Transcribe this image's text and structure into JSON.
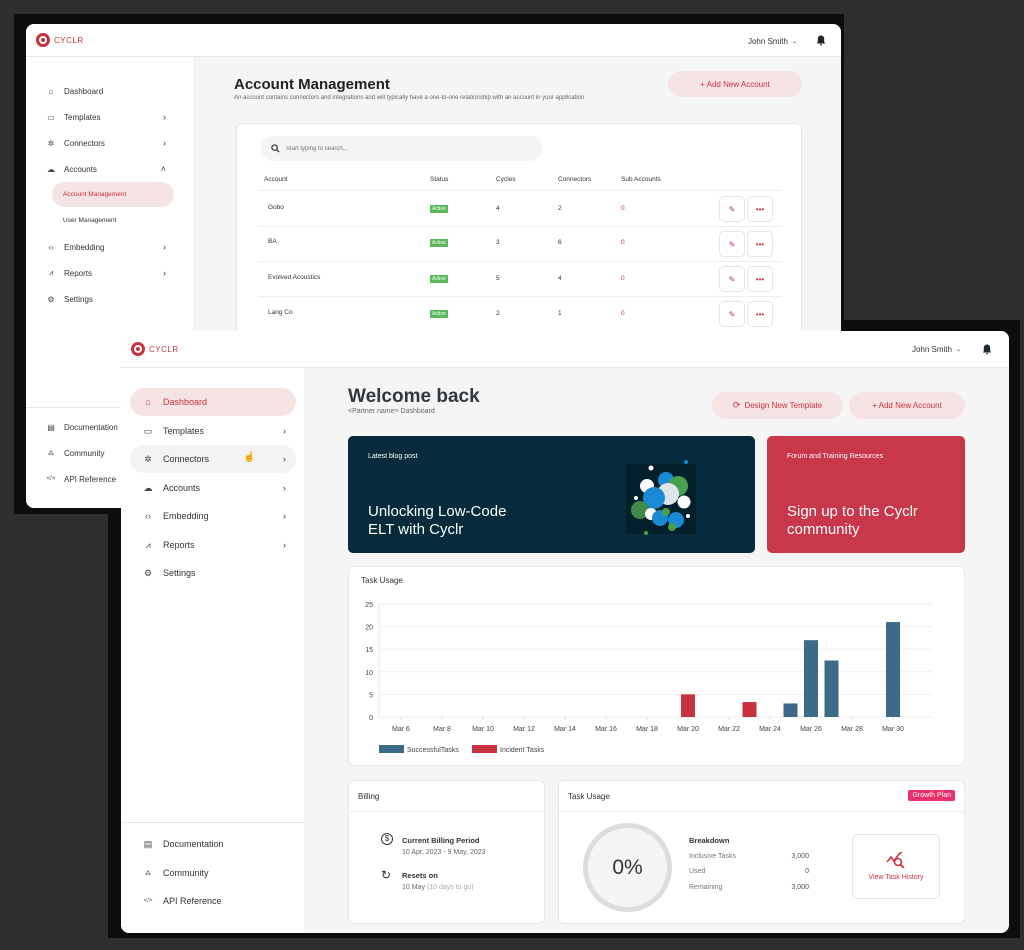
{
  "colors": {
    "brand_red": "#c8323f",
    "blog_bg": "#052b3c",
    "forum_bg": "#c8374a",
    "success_bar": "#3e6a8a",
    "incident_bar": "#c8323f",
    "active_badge": "#5cb85c",
    "growth_badge": "#e8316a"
  },
  "back_window": {
    "logo": "CYCLR",
    "user": "John Smith",
    "sidebar": {
      "items": [
        {
          "label": "Dashboard",
          "icon": "home-icon"
        },
        {
          "label": "Templates",
          "icon": "templates-icon",
          "chevron": ">"
        },
        {
          "label": "Connectors",
          "icon": "connectors-icon",
          "chevron": ">"
        },
        {
          "label": "Accounts",
          "icon": "cloud-icon",
          "chevron": "^"
        },
        {
          "label": "Embedding",
          "icon": "code-icon",
          "chevron": ">"
        },
        {
          "label": "Reports",
          "icon": "reports-icon",
          "chevron": ">"
        },
        {
          "label": "Settings",
          "icon": "gear-icon"
        }
      ],
      "sub_items": [
        {
          "label": "Account Management",
          "active": true
        },
        {
          "label": "User Management",
          "active": false
        }
      ],
      "footer": [
        {
          "label": "Documentation",
          "icon": "document-icon"
        },
        {
          "label": "Community",
          "icon": "community-icon"
        },
        {
          "label": "API Reference",
          "icon": "code-icon"
        }
      ]
    },
    "page_title": "Account Management",
    "page_subtitle": "An account contains connectors and integrations and will typically have a one-to-one relationship with an account in your application",
    "add_button": "+ Add New Account",
    "search_placeholder": "Start typing to search...",
    "table": {
      "headers": [
        "Account",
        "Status",
        "Cycles",
        "Connectors",
        "Sub Accounts"
      ],
      "rows": [
        {
          "account": "Gobo",
          "status": "Active",
          "cycles": "4",
          "connectors": "2",
          "sub_accounts": "0"
        },
        {
          "account": "BA",
          "status": "Active",
          "cycles": "3",
          "connectors": "6",
          "sub_accounts": "0"
        },
        {
          "account": "Evolved Acoustics",
          "status": "Active",
          "cycles": "5",
          "connectors": "4",
          "sub_accounts": "0"
        },
        {
          "account": "Lang Co",
          "status": "Active",
          "cycles": "2",
          "connectors": "1",
          "sub_accounts": "0"
        }
      ]
    }
  },
  "front_window": {
    "logo": "CYCLR",
    "user": "John Smith",
    "sidebar": {
      "items": [
        {
          "label": "Dashboard",
          "icon": "home-icon",
          "active": true
        },
        {
          "label": "Templates",
          "icon": "templates-icon",
          "chevron": ">"
        },
        {
          "label": "Connectors",
          "icon": "connectors-icon",
          "chevron": ">"
        },
        {
          "label": "Accounts",
          "icon": "cloud-icon",
          "chevron": ">"
        },
        {
          "label": "Embedding",
          "icon": "code-icon",
          "chevron": ">"
        },
        {
          "label": "Reports",
          "icon": "reports-icon",
          "chevron": ">"
        },
        {
          "label": "Settings",
          "icon": "gear-icon"
        }
      ],
      "footer": [
        {
          "label": "Documentation",
          "icon": "document-icon"
        },
        {
          "label": "Community",
          "icon": "community-icon"
        },
        {
          "label": "API Reference",
          "icon": "code-icon"
        }
      ]
    },
    "page_title": "Welcome back",
    "page_subtitle": "<Partner name> Dashboard",
    "design_button": "Design New Template",
    "add_button": "+ Add New Account",
    "blog_card": {
      "eyebrow": "Latest blog post",
      "title_line1": "Unlocking Low-Code",
      "title_line2": "ELT with Cyclr"
    },
    "forum_card": {
      "eyebrow": "Forum and Training Resources",
      "title_line1": "Sign up to the Cyclr",
      "title_line2": "community"
    },
    "task_usage_chart_title": "Task Usage",
    "billing": {
      "title": "Billing",
      "period_label": "Current Billing Period",
      "period_value": "10 Apr, 2023 - 9 May, 2023",
      "resets_label": "Resets on",
      "resets_value": "10 May",
      "resets_note": "(10 days to go)"
    },
    "task_usage": {
      "title": "Task Usage",
      "plan_badge": "Growth Plan",
      "percent": "0%",
      "breakdown_title": "Breakdown",
      "rows": [
        {
          "label": "Inclusive Tasks",
          "value": "3,000"
        },
        {
          "label": "Used",
          "value": "0"
        },
        {
          "label": "Remaining",
          "value": "3,000"
        }
      ],
      "history_button": "View Task History"
    }
  },
  "chart_data": {
    "type": "bar",
    "title": "Task Usage",
    "xlabel": "",
    "ylabel": "",
    "ylim": [
      0,
      25
    ],
    "yticks": [
      0,
      5,
      10,
      15,
      20,
      25
    ],
    "xtick_labels": [
      "Mar 6",
      "Mar 8",
      "Mar 10",
      "Mar 12",
      "Mar 14",
      "Mar 16",
      "Mar 18",
      "Mar 20",
      "Mar 22",
      "Mar 24",
      "Mar 26",
      "Mar 28",
      "Mar 30"
    ],
    "categories": [
      "Mar 20",
      "Mar 23",
      "Mar 25",
      "Mar 26",
      "Mar 27",
      "Mar 30"
    ],
    "series": [
      {
        "name": "SuccessfulTasks",
        "color": "#3e6a8a",
        "values": [
          0,
          0,
          3,
          17,
          12.5,
          21
        ]
      },
      {
        "name": "Incident Tasks",
        "color": "#c8323f",
        "values": [
          5,
          3.3,
          0,
          0,
          0,
          0
        ]
      }
    ],
    "grid": true,
    "legend_position": "bottom-left"
  }
}
